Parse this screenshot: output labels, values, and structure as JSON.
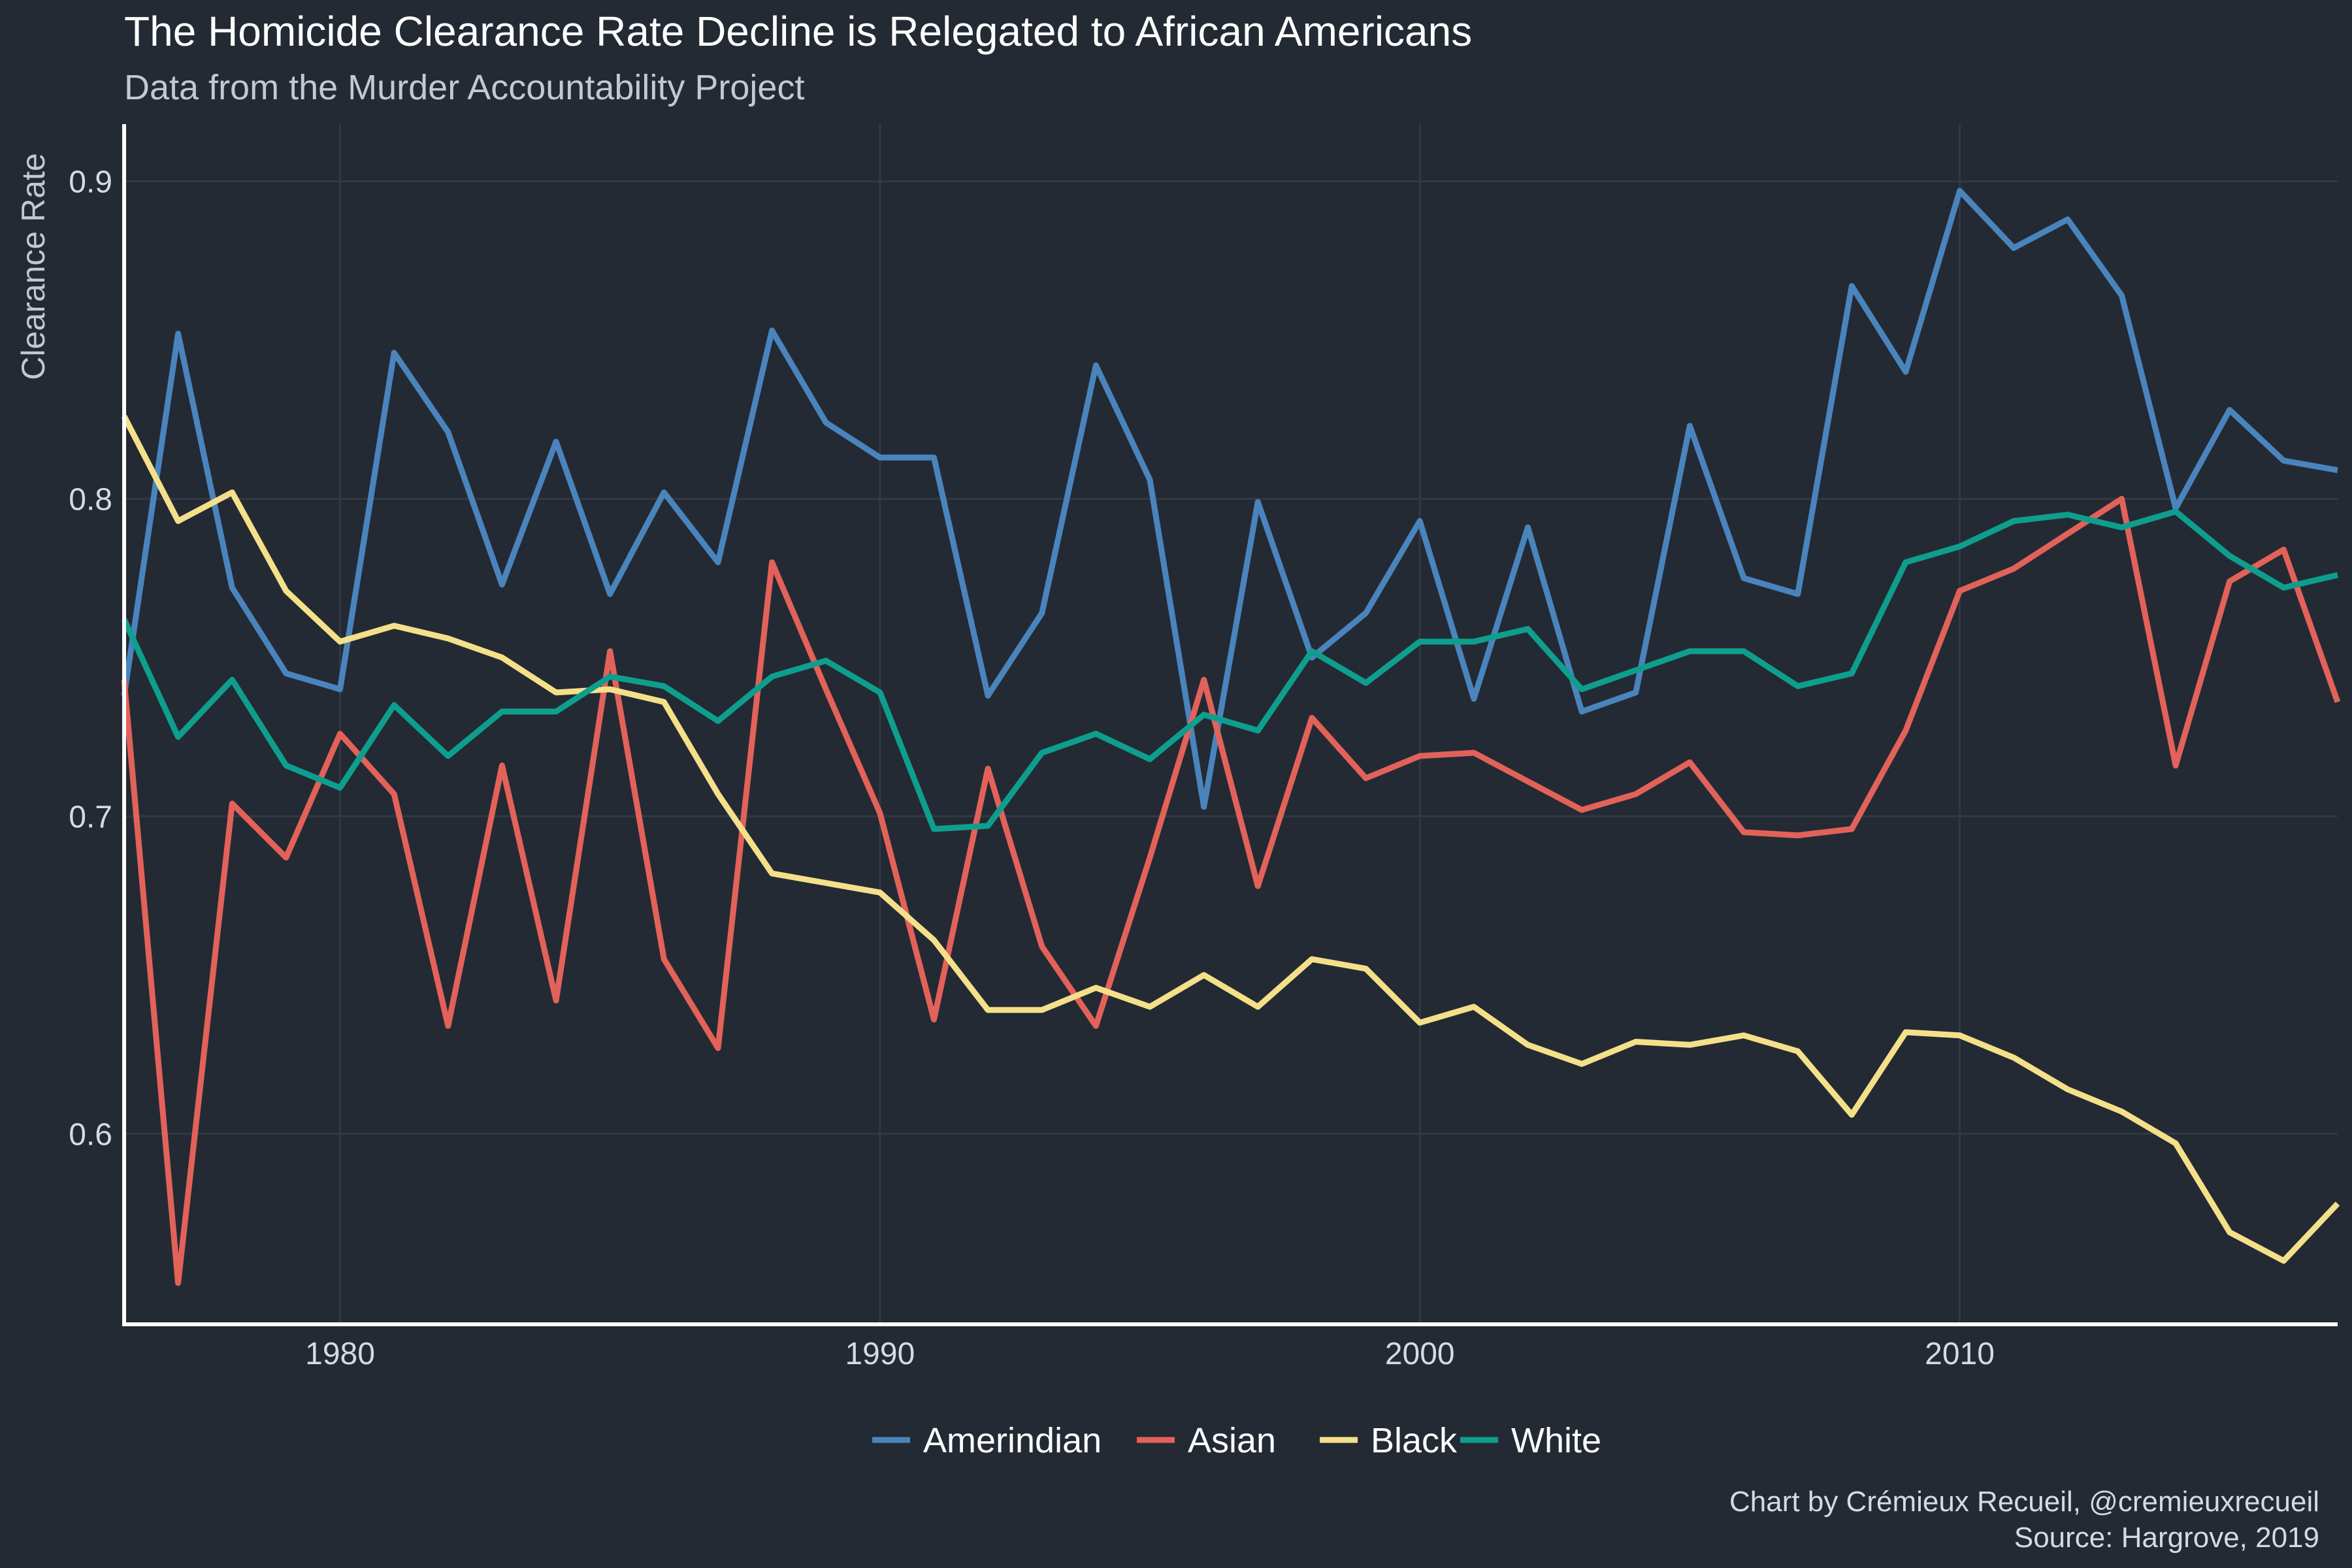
{
  "chart_data": {
    "type": "line",
    "title": "The Homicide Clearance Rate Decline is Relegated to African Americans",
    "subtitle": "Data from the Murder Accountability Project",
    "ylabel": "Clearance Rate",
    "xlabel": "",
    "xlim": [
      1976,
      2017
    ],
    "ylim": [
      0.54,
      0.918
    ],
    "x_ticks": [
      1980,
      1990,
      2000,
      2010
    ],
    "y_ticks": [
      0.6,
      0.7,
      0.8,
      0.9
    ],
    "x_tick_labels": [
      "1980",
      "1990",
      "2000",
      "2010"
    ],
    "y_tick_labels": [
      "0.6",
      "0.7",
      "0.8",
      "0.9"
    ],
    "grid": true,
    "legend_position": "bottom",
    "x": [
      1976,
      1977,
      1978,
      1979,
      1980,
      1981,
      1982,
      1983,
      1984,
      1985,
      1986,
      1987,
      1988,
      1989,
      1990,
      1991,
      1992,
      1993,
      1994,
      1995,
      1996,
      1997,
      1998,
      1999,
      2000,
      2001,
      2002,
      2003,
      2004,
      2005,
      2006,
      2007,
      2008,
      2009,
      2010,
      2011,
      2012,
      2013,
      2014,
      2015,
      2016,
      2017
    ],
    "series": [
      {
        "name": "Amerindian",
        "color": "#4a84bd",
        "values": [
          0.738,
          0.852,
          0.772,
          0.745,
          0.74,
          0.846,
          0.821,
          0.773,
          0.818,
          0.77,
          0.802,
          0.78,
          0.853,
          0.824,
          0.813,
          0.813,
          0.738,
          0.764,
          0.842,
          0.806,
          0.703,
          0.799,
          0.75,
          0.764,
          0.793,
          0.737,
          0.791,
          0.733,
          0.739,
          0.823,
          0.775,
          0.77,
          0.867,
          0.84,
          0.897,
          0.879,
          0.888,
          0.864,
          0.797,
          0.828,
          0.812,
          0.809
        ]
      },
      {
        "name": "Asian",
        "color": "#e2625a",
        "values": [
          0.743,
          0.553,
          0.704,
          0.687,
          0.726,
          0.707,
          0.634,
          0.716,
          0.642,
          0.752,
          0.655,
          0.627,
          0.78,
          0.74,
          0.701,
          0.636,
          0.715,
          0.659,
          0.634,
          0.687,
          0.743,
          0.678,
          0.731,
          0.712,
          0.719,
          0.72,
          0.711,
          0.702,
          0.707,
          0.717,
          0.695,
          0.694,
          0.696,
          0.727,
          0.771,
          0.778,
          0.789,
          0.8,
          0.716,
          0.774,
          0.784,
          0.736
        ]
      },
      {
        "name": "Black",
        "color": "#f5e08a",
        "values": [
          0.826,
          0.793,
          0.802,
          0.771,
          0.755,
          0.76,
          0.756,
          0.75,
          0.739,
          0.74,
          0.736,
          0.707,
          0.682,
          0.679,
          0.676,
          0.661,
          0.639,
          0.639,
          0.646,
          0.64,
          0.65,
          0.64,
          0.655,
          0.652,
          0.635,
          0.64,
          0.628,
          0.622,
          0.629,
          0.628,
          0.631,
          0.626,
          0.606,
          0.632,
          0.631,
          0.624,
          0.614,
          0.607,
          0.597,
          0.569,
          0.56,
          0.578
        ]
      },
      {
        "name": "White",
        "color": "#0e9e8e",
        "values": [
          0.762,
          0.725,
          0.743,
          0.716,
          0.709,
          0.735,
          0.719,
          0.733,
          0.733,
          0.744,
          0.741,
          0.73,
          0.744,
          0.749,
          0.739,
          0.696,
          0.697,
          0.72,
          0.726,
          0.718,
          0.732,
          0.727,
          0.752,
          0.742,
          0.755,
          0.755,
          0.759,
          0.74,
          0.746,
          0.752,
          0.752,
          0.741,
          0.745,
          0.78,
          0.785,
          0.793,
          0.795,
          0.791,
          0.796,
          0.782,
          0.772,
          0.776
        ]
      }
    ]
  },
  "caption": {
    "line1": "Chart by Crémieux Recueil, @cremieuxrecueil",
    "line2": "Source: Hargrove, 2019"
  }
}
